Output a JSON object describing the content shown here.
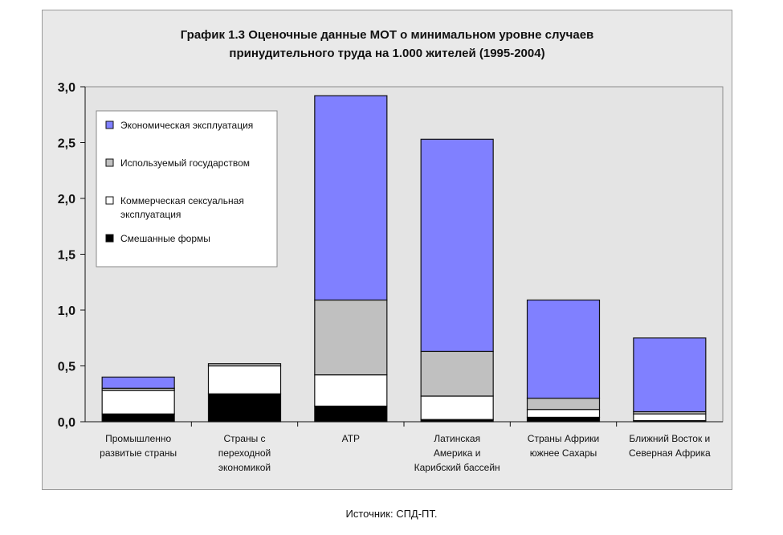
{
  "chart_data": {
    "type": "bar",
    "stacked": true,
    "title_line1": "График 1.3 Оценочные данные МОТ о минимальном уровне случаев",
    "title_line2": "принудительного труда на 1.000 жителей (1995-2004)",
    "categories": [
      [
        "Промышленно",
        "развитые страны"
      ],
      [
        "Страны с",
        "переходной",
        "экономикой"
      ],
      [
        "АТР"
      ],
      [
        "Латинская",
        "Америка и",
        "Карибский бассейн"
      ],
      [
        "Страны Африки",
        "южнее Сахары"
      ],
      [
        "Ближний Восток и",
        "Северная Африка"
      ]
    ],
    "series": [
      {
        "name": "Смешанные формы",
        "color": "#000000",
        "values": [
          0.07,
          0.25,
          0.14,
          0.02,
          0.04,
          0.01
        ]
      },
      {
        "name": [
          "Коммерческая сексуальная",
          "эксплуатация"
        ],
        "color": "#ffffff",
        "values": [
          0.21,
          0.25,
          0.28,
          0.21,
          0.07,
          0.06
        ]
      },
      {
        "name": "Используемый государством",
        "color": "#c0c0c0",
        "values": [
          0.02,
          0.02,
          0.67,
          0.4,
          0.1,
          0.02
        ]
      },
      {
        "name": "Экономическая эксплуатация",
        "color": "#8080ff",
        "values": [
          0.1,
          0.0,
          1.83,
          1.9,
          0.88,
          0.66
        ]
      }
    ],
    "y_ticks": [
      "0,0",
      "0,5",
      "1,0",
      "1,5",
      "2,0",
      "2,5",
      "3,0"
    ],
    "ylim": [
      0,
      3.0
    ],
    "legend_position": "top-left"
  },
  "source": "Источник: СПД-ПТ."
}
